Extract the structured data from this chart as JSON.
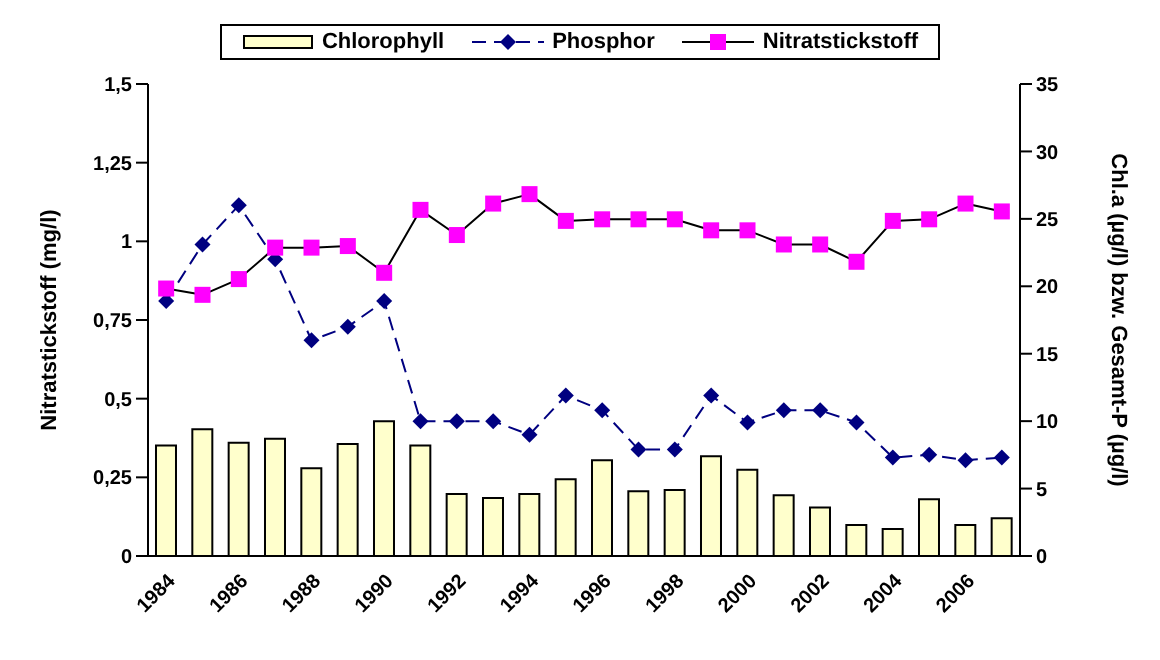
{
  "chart_data": {
    "type": "bar",
    "categories": [
      "1984",
      null,
      "1986",
      null,
      "1988",
      null,
      "1990",
      null,
      "1992",
      null,
      "1994",
      null,
      "1996",
      null,
      "1998",
      null,
      "2000",
      null,
      "2002",
      null,
      "2004",
      null,
      "2006",
      null
    ],
    "series": [
      {
        "name": "Chlorophyll",
        "axis": "y2",
        "color": "#ffffcc",
        "values": [
          8.2,
          9.4,
          8.4,
          8.7,
          6.5,
          8.3,
          10.0,
          8.2,
          4.6,
          4.3,
          4.6,
          5.7,
          7.1,
          4.8,
          4.9,
          7.4,
          6.4,
          4.5,
          3.6,
          2.3,
          2.0,
          4.2,
          2.3,
          2.8
        ]
      },
      {
        "name": "Phosphor",
        "type": "line",
        "axis": "y2",
        "color": "#000080",
        "marker": "diamond",
        "line_style": "dashed",
        "values": [
          18.9,
          23.1,
          26.0,
          22.0,
          16.0,
          17.0,
          18.9,
          10.0,
          10.0,
          10.0,
          9.0,
          11.9,
          10.8,
          7.9,
          7.9,
          11.9,
          9.9,
          10.8,
          10.8,
          9.9,
          7.3,
          7.5,
          7.1,
          7.3
        ]
      },
      {
        "name": "Nitratstickstoff",
        "type": "line",
        "color": "#ff00ff",
        "marker": "square",
        "line_style": "solid",
        "values": [
          0.85,
          0.83,
          0.88,
          0.98,
          0.98,
          0.985,
          0.9,
          1.1,
          1.02,
          1.12,
          1.15,
          1.065,
          1.07,
          1.07,
          1.07,
          1.035,
          1.035,
          0.99,
          0.99,
          0.935,
          1.065,
          1.07,
          1.12,
          1.095
        ]
      }
    ],
    "ylabel": "Nitratstickstoff (mg/l)",
    "y2label": "Chl.a (µg/l) bzw. Gesamt-P (µg/l)",
    "ylim": [
      0,
      1.5
    ],
    "yticks": [
      0,
      {
        "value": 0.25,
        "label": "0,25"
      },
      {
        "value": 0.5,
        "label": "0,5"
      },
      {
        "value": 0.75,
        "label": "0,75"
      },
      1,
      {
        "value": 1.25,
        "label": "1,25"
      },
      {
        "value": 1.5,
        "label": "1,5"
      }
    ],
    "y2lim": [
      0,
      35
    ],
    "y2ticks": [
      0,
      5,
      10,
      15,
      20,
      25,
      30,
      35
    ],
    "grid": false,
    "legend": "top"
  }
}
